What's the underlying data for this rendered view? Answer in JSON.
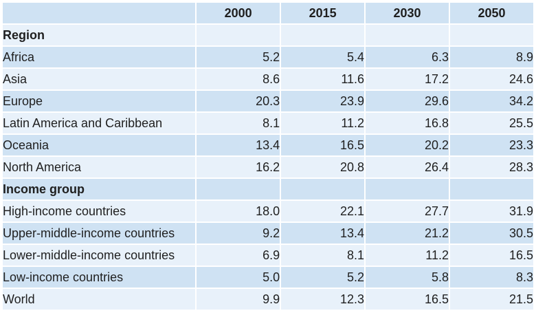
{
  "columns": [
    "",
    "2000",
    "2015",
    "2030",
    "2050"
  ],
  "sections": [
    {
      "title": "Region",
      "rows": [
        {
          "label": "Africa",
          "values": [
            "5.2",
            "5.4",
            "6.3",
            "8.9"
          ]
        },
        {
          "label": "Asia",
          "values": [
            "8.6",
            "11.6",
            "17.2",
            "24.6"
          ]
        },
        {
          "label": "Europe",
          "values": [
            "20.3",
            "23.9",
            "29.6",
            "34.2"
          ]
        },
        {
          "label": "Latin America and Caribbean",
          "values": [
            "8.1",
            "11.2",
            "16.8",
            "25.5"
          ]
        },
        {
          "label": "Oceania",
          "values": [
            "13.4",
            "16.5",
            "20.2",
            "23.3"
          ]
        },
        {
          "label": "North America",
          "values": [
            "16.2",
            "20.8",
            "26.4",
            "28.3"
          ]
        }
      ]
    },
    {
      "title": "Income group",
      "rows": [
        {
          "label": "High-income countries",
          "values": [
            "18.0",
            "22.1",
            "27.7",
            "31.9"
          ]
        },
        {
          "label": "Upper-middle-income countries",
          "values": [
            "9.2",
            "13.4",
            "21.2",
            "30.5"
          ]
        },
        {
          "label": "Lower-middle-income countries",
          "values": [
            "6.9",
            "8.1",
            "11.2",
            "16.5"
          ]
        },
        {
          "label": "Low-income countries",
          "values": [
            "5.0",
            "5.2",
            "5.8",
            "8.3"
          ]
        },
        {
          "label": "World",
          "values": [
            "9.9",
            "12.3",
            "16.5",
            "21.5"
          ]
        }
      ]
    }
  ],
  "colors": {
    "shade": "#cfe2f3",
    "light": "#e8f1fa"
  }
}
